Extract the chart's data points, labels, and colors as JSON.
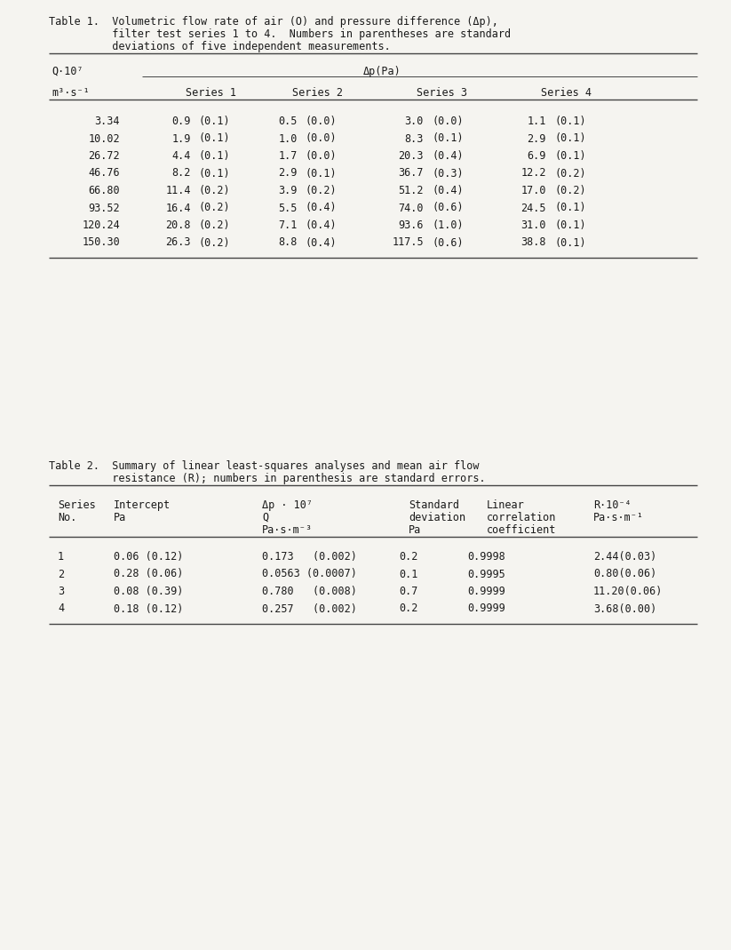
{
  "bg_color": "#f5f4f0",
  "text_color": "#1a1a1a",
  "line_color": "#444444",
  "table1": {
    "title": [
      "Table 1.  Volumetric flow rate of air (O) and pressure difference (Δp),",
      "          filter test series 1 to 4.  Numbers in parentheses are standard",
      "          deviations of five independent measurements."
    ],
    "header1_left": "Q·10⁷",
    "header1_right": "Δp(Pa)",
    "header2_left": "m³·s⁻¹",
    "series_headers": [
      "Series 1",
      "Series 2",
      "Series 3",
      "Series 4"
    ],
    "data": [
      [
        "3.34",
        "0.9",
        "(0.1)",
        "0.5",
        "(0.0)",
        "3.0",
        "(0.0)",
        "1.1",
        "(0.1)"
      ],
      [
        "10.02",
        "1.9",
        "(0.1)",
        "1.0",
        "(0.0)",
        "8.3",
        "(0.1)",
        "2.9",
        "(0.1)"
      ],
      [
        "26.72",
        "4.4",
        "(0.1)",
        "1.7",
        "(0.0)",
        "20.3",
        "(0.4)",
        "6.9",
        "(0.1)"
      ],
      [
        "46.76",
        "8.2",
        "(0.1)",
        "2.9",
        "(0.1)",
        "36.7",
        "(0.3)",
        "12.2",
        "(0.2)"
      ],
      [
        "66.80",
        "11.4",
        "(0.2)",
        "3.9",
        "(0.2)",
        "51.2",
        "(0.4)",
        "17.0",
        "(0.2)"
      ],
      [
        "93.52",
        "16.4",
        "(0.2)",
        "5.5",
        "(0.4)",
        "74.0",
        "(0.6)",
        "24.5",
        "(0.1)"
      ],
      [
        "120.24",
        "20.8",
        "(0.2)",
        "7.1",
        "(0.4)",
        "93.6",
        "(1.0)",
        "31.0",
        "(0.1)"
      ],
      [
        "150.30",
        "26.3",
        "(0.2)",
        "8.8",
        "(0.4)",
        "117.5",
        "(0.6)",
        "38.8",
        "(0.1)"
      ]
    ]
  },
  "table2": {
    "title": [
      "Table 2.  Summary of linear least-squares analyses and mean air flow",
      "          resistance (R); numbers in parenthesis are standard errors."
    ],
    "header_row1": [
      "Series",
      "Intercept",
      "Δp · 10⁷",
      "Standard",
      "Linear",
      "R·10⁻⁴"
    ],
    "header_row2": [
      "No.",
      "Pa",
      "Q",
      "deviation",
      "correlation",
      "Pa·s·m⁻¹"
    ],
    "header_row3": [
      "",
      "",
      "Pa·s·m⁻³",
      "Pa",
      "coefficient",
      ""
    ],
    "data": [
      [
        "1",
        "0.06 (0.12)",
        "0.173   (0.002)",
        "0.2",
        "0.9998",
        "2.44(0.03)"
      ],
      [
        "2",
        "0.28 (0.06)",
        "0.0563 (0.0007)",
        "0.1",
        "0.9995",
        "0.80(0.06)"
      ],
      [
        "3",
        "0.08 (0.39)",
        "0.780   (0.008)",
        "0.7",
        "0.9999",
        "11.20(0.06)"
      ],
      [
        "4",
        "0.18 (0.12)",
        "0.257   (0.002)",
        "0.2",
        "0.9999",
        "3.68(0.00)"
      ]
    ]
  }
}
